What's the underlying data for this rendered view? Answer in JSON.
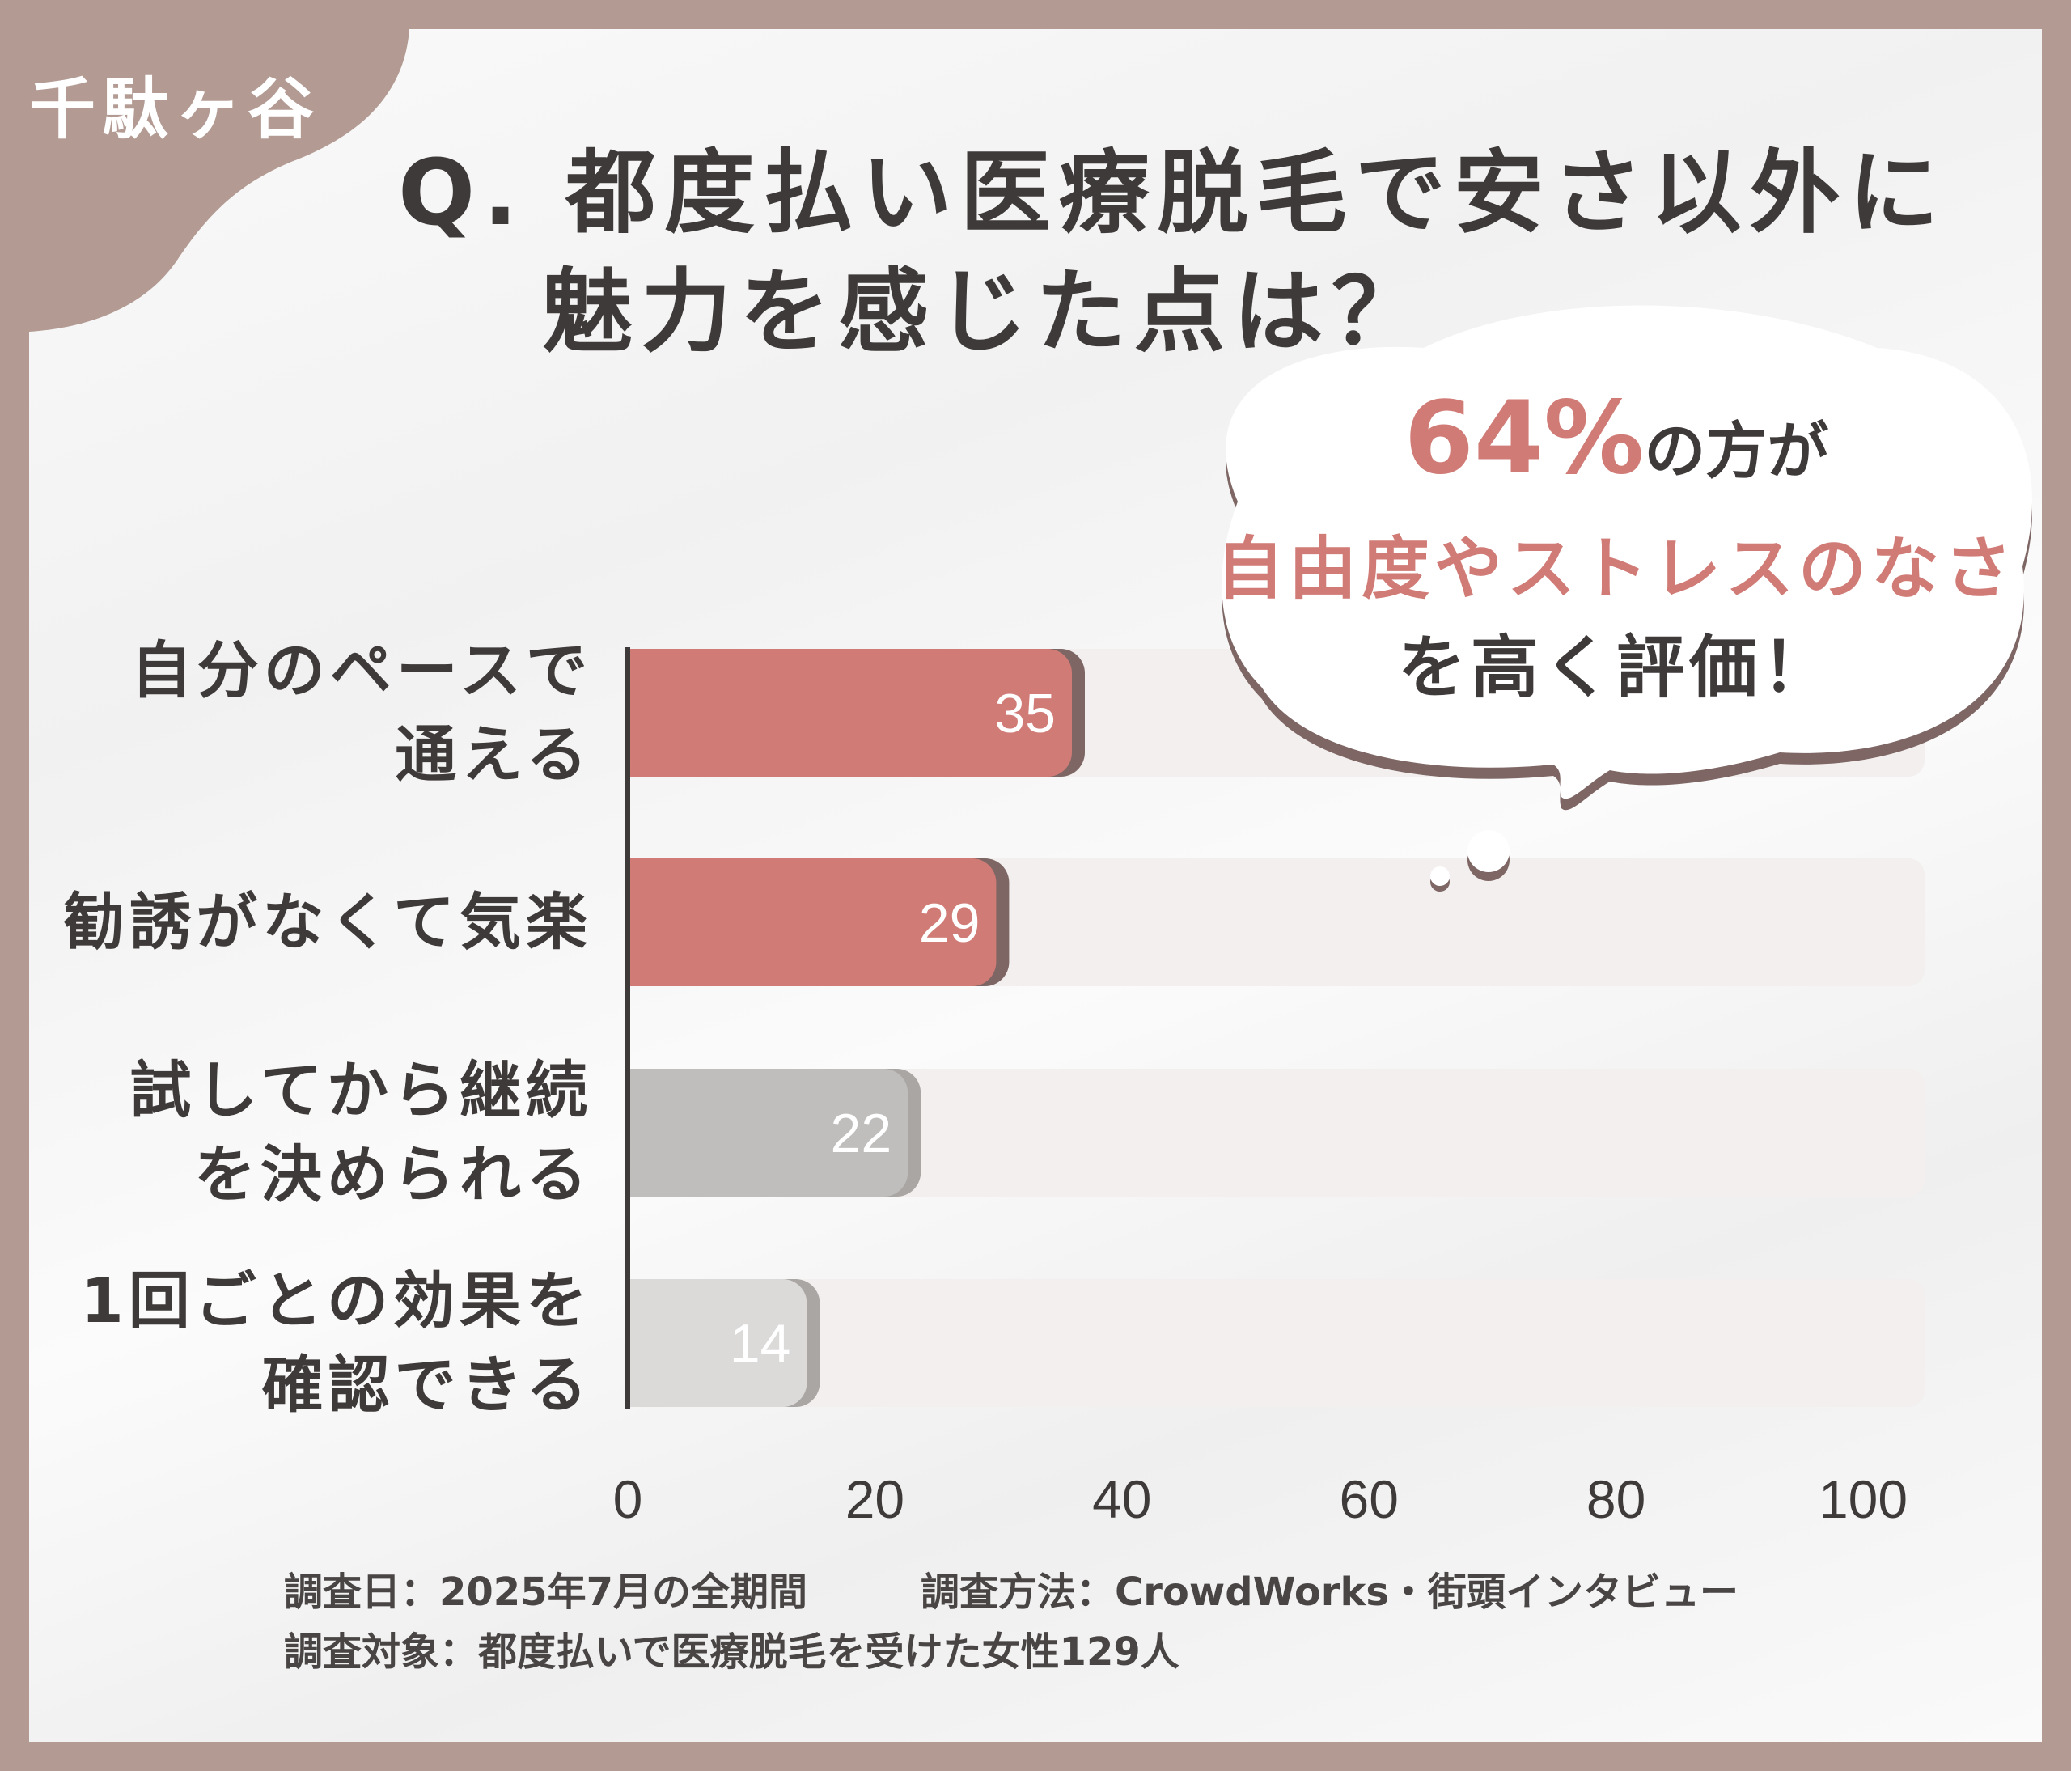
{
  "brand": "千駄ヶ谷",
  "title": {
    "line1": "Q. 都度払い医療脱毛で安さ以外に",
    "line2": "魅力を感じた点は？"
  },
  "callout": {
    "highlight": "64%",
    "line1_suffix": "の方が",
    "line2": "自由度やストレスのなさ",
    "line3": "を高く評価！"
  },
  "colors": {
    "frame": "#b39b93",
    "accent": "#d07b76",
    "accent_shadow": "#7d6664",
    "gray": "#c0bebc",
    "light_gray": "#dcdad9",
    "track": "#f2efee",
    "text": "#3e3a39"
  },
  "chart_data": {
    "type": "bar",
    "orientation": "horizontal",
    "categories": [
      [
        "自分のペースで",
        "通える"
      ],
      [
        "勧誘がなくて気楽"
      ],
      [
        "試してから継続",
        "を決められる"
      ],
      [
        "1回ごとの効果を",
        "確認できる"
      ]
    ],
    "values": [
      35,
      29,
      22,
      14
    ],
    "bar_colors": [
      "#d07b76",
      "#d07b76",
      "#c0bebc",
      "#dcdad9"
    ],
    "xlim": [
      0,
      100
    ],
    "xticks": [
      "0",
      "20",
      "40",
      "60",
      "80",
      "100"
    ],
    "grid": false
  },
  "footer": {
    "line1a": "調査日：2025年7月の全期間",
    "line1b": "調査方法：CrowdWorks・街頭インタビュー",
    "line2": "調査対象：都度払いで医療脱毛を受けた女性129人"
  }
}
